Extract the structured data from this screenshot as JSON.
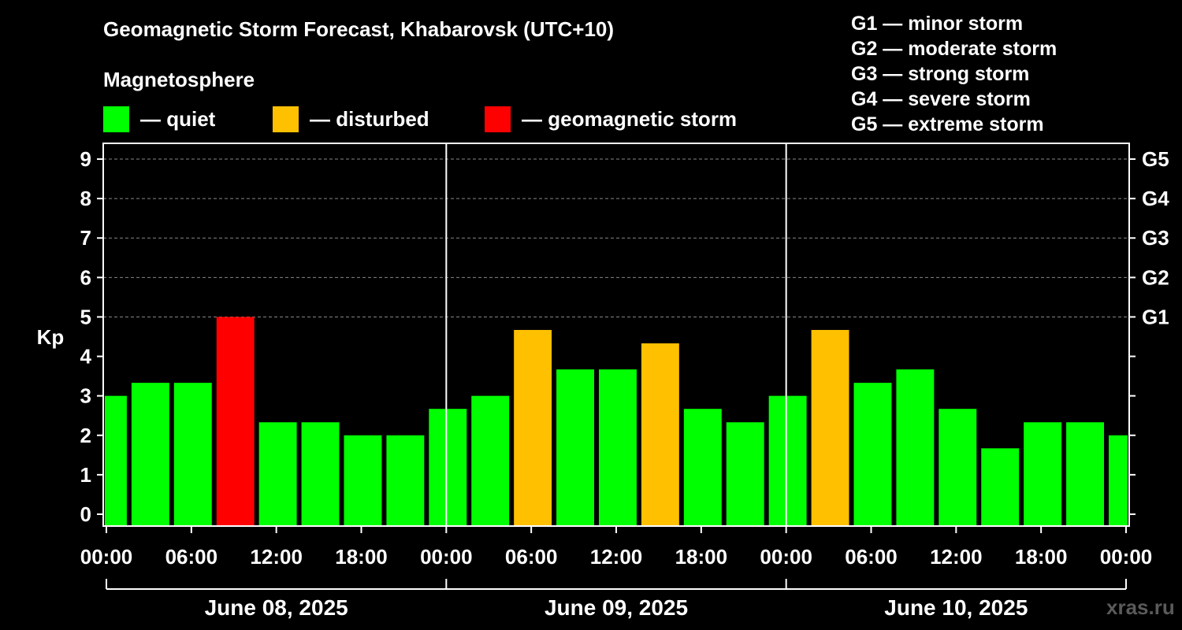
{
  "title": "Geomagnetic Storm Forecast, Khabarovsk (UTC+10)",
  "legend": {
    "heading": "Magnetosphere",
    "items": [
      {
        "label": "— quiet",
        "color": "#00ff00"
      },
      {
        "label": "— disturbed",
        "color": "#ffc000"
      },
      {
        "label": "— geomagnetic storm",
        "color": "#ff0000"
      }
    ]
  },
  "storm_scale": [
    "G1 — minor storm",
    "G2 — moderate storm",
    "G3 — strong storm",
    "G4 — severe storm",
    "G5 — extreme storm"
  ],
  "watermark": "xras.ru",
  "chart_data": {
    "type": "bar",
    "ylabel": "Kp",
    "ylim": [
      -0.3,
      9.4
    ],
    "yticks": [
      0,
      1,
      2,
      3,
      4,
      5,
      6,
      7,
      8,
      9
    ],
    "right_ticks": [
      {
        "value": 5,
        "label": "G1"
      },
      {
        "value": 6,
        "label": "G2"
      },
      {
        "value": 7,
        "label": "G3"
      },
      {
        "value": 8,
        "label": "G4"
      },
      {
        "value": 9,
        "label": "G5"
      }
    ],
    "grid": "dashed horizontal at Kp 5-9",
    "xticks": [
      "00:00",
      "06:00",
      "12:00",
      "18:00",
      "00:00",
      "06:00",
      "12:00",
      "18:00",
      "00:00",
      "06:00",
      "12:00",
      "18:00",
      "00:00"
    ],
    "days": [
      "June 08, 2025",
      "June 09, 2025",
      "June 10, 2025"
    ],
    "interval_hours": 3,
    "values": [
      3.0,
      3.33,
      3.33,
      5.0,
      2.33,
      2.33,
      2.0,
      2.0,
      2.67,
      3.0,
      4.67,
      3.67,
      3.67,
      4.33,
      2.67,
      2.33,
      3.0,
      4.67,
      3.33,
      3.67,
      2.67,
      1.67,
      2.33,
      2.33,
      2.0
    ],
    "colors": [
      "quiet",
      "quiet",
      "quiet",
      "storm",
      "quiet",
      "quiet",
      "quiet",
      "quiet",
      "quiet",
      "quiet",
      "disturbed",
      "quiet",
      "quiet",
      "disturbed",
      "quiet",
      "quiet",
      "quiet",
      "disturbed",
      "quiet",
      "quiet",
      "quiet",
      "quiet",
      "quiet",
      "quiet",
      "quiet"
    ],
    "color_map": {
      "quiet": "#00ff00",
      "disturbed": "#ffc000",
      "storm": "#ff0000"
    }
  }
}
